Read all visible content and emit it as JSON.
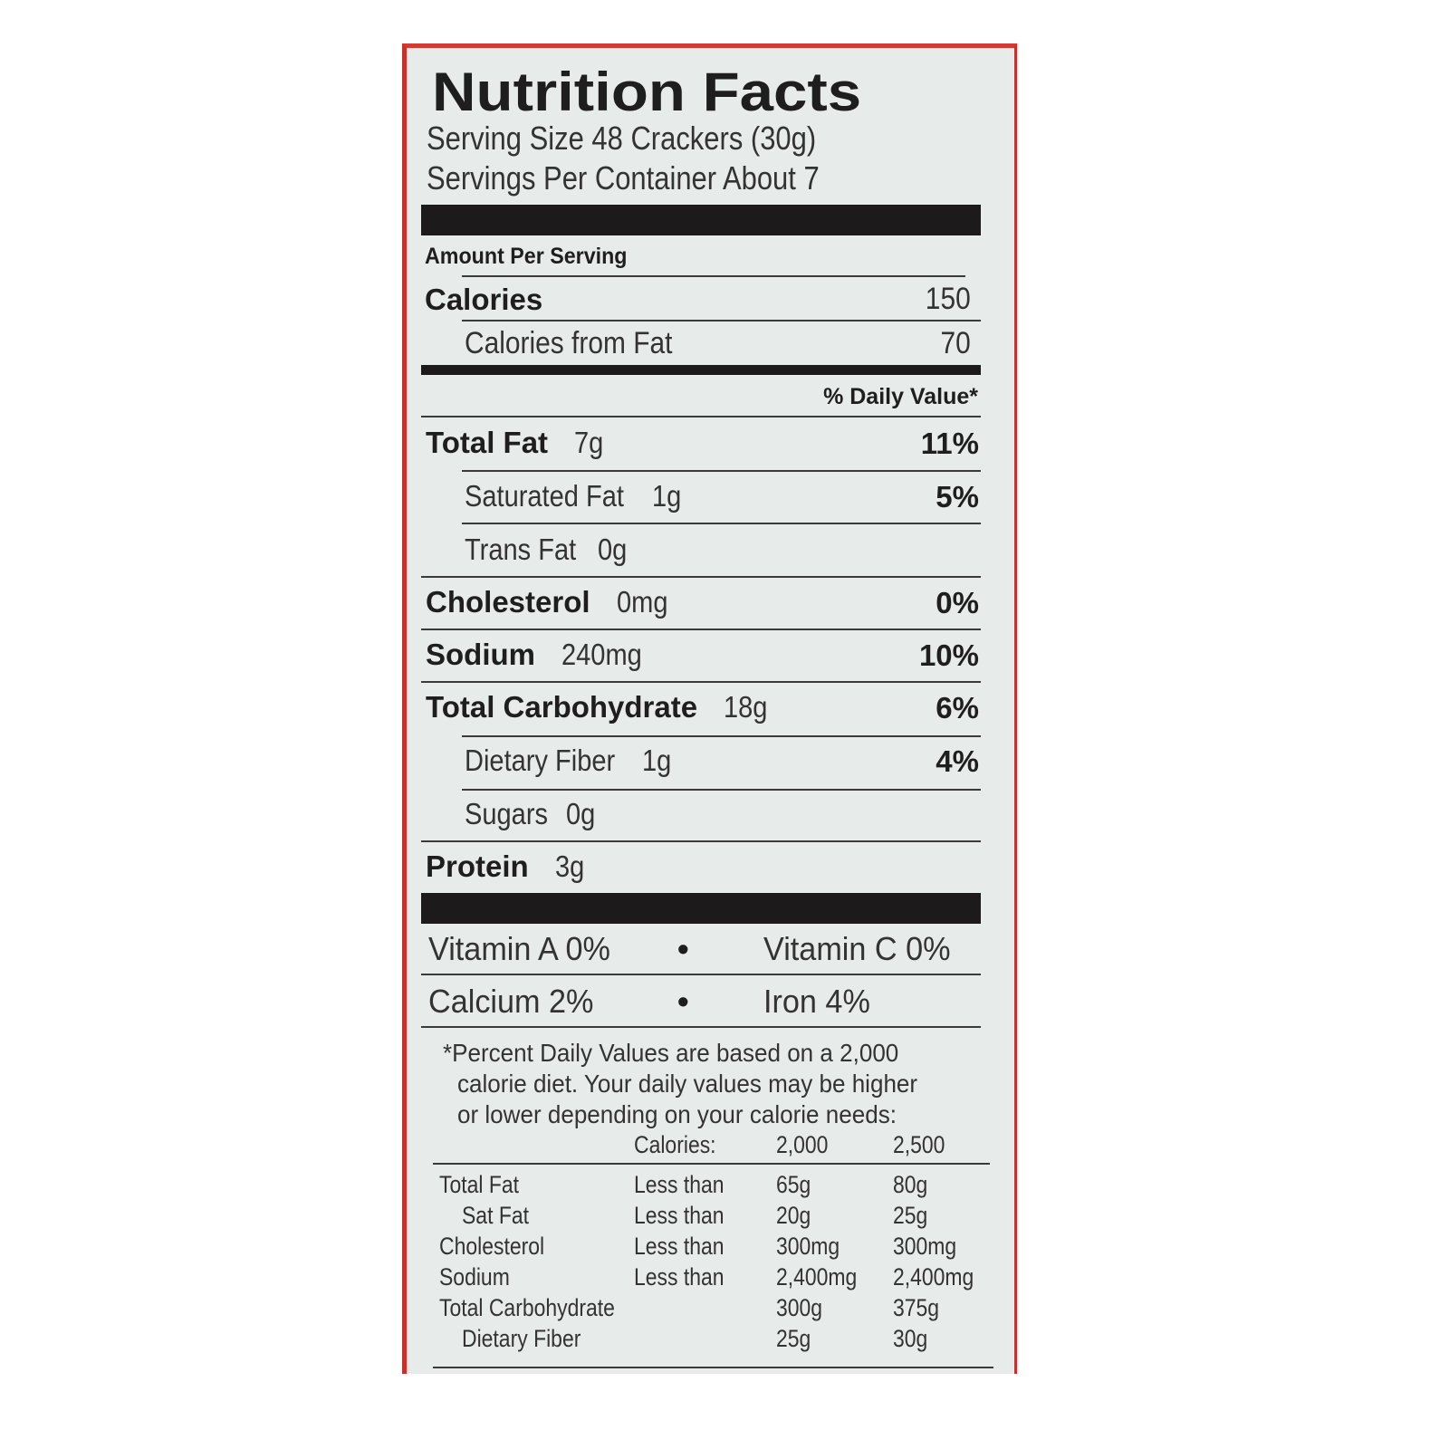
{
  "label": {
    "title": "Nutrition Facts",
    "serving_size": "Serving Size 48 Crackers (30g)",
    "servings_per_container": "Servings Per Container About 7",
    "amount_per_serving": "Amount Per Serving",
    "calories_label": "Calories",
    "calories_value": "150",
    "calories_from_fat_label": "Calories from Fat",
    "calories_from_fat_value": "70",
    "daily_value_header": "% Daily Value*",
    "nutrients": [
      {
        "name": "Total Fat",
        "amount": "7g",
        "dv": "11%",
        "sub": false
      },
      {
        "name": "Saturated Fat",
        "amount": "1g",
        "dv": "5%",
        "sub": true
      },
      {
        "name": "Trans Fat",
        "amount": "0g",
        "dv": "",
        "sub": true
      },
      {
        "name": "Cholesterol",
        "amount": "0mg",
        "dv": "0%",
        "sub": false
      },
      {
        "name": "Sodium",
        "amount": "240mg",
        "dv": "10%",
        "sub": false
      },
      {
        "name": "Total Carbohydrate",
        "amount": "18g",
        "dv": "6%",
        "sub": false
      },
      {
        "name": "Dietary Fiber",
        "amount": "1g",
        "dv": "4%",
        "sub": true
      },
      {
        "name": "Sugars",
        "amount": "0g",
        "dv": "",
        "sub": true
      },
      {
        "name": "Protein",
        "amount": "3g",
        "dv": "",
        "sub": false
      }
    ],
    "vitamins": [
      {
        "left": "Vitamin A 0%",
        "separator": "•",
        "right": "Vitamin C 0%"
      },
      {
        "left": "Calcium 2%",
        "separator": "•",
        "right": "Iron 4%"
      }
    ],
    "footnote": [
      "*Percent Daily Values are based on a 2,000",
      "calorie diet. Your daily values may be higher",
      "or lower depending on your calorie needs:"
    ],
    "dv_table": {
      "header": [
        "",
        "Calories:",
        "2,000",
        "2,500"
      ],
      "rows": [
        [
          "Total Fat",
          "Less than",
          "65g",
          "80g"
        ],
        [
          "Sat Fat",
          "Less than",
          "20g",
          "25g"
        ],
        [
          "Cholesterol",
          "Less than",
          "300mg",
          "300mg"
        ],
        [
          "Sodium",
          "Less than",
          "2,400mg",
          "2,400mg"
        ],
        [
          "Total Carbohydrate",
          "",
          "300g",
          "375g"
        ],
        [
          "Dietary Fiber",
          "",
          "25g",
          "30g"
        ]
      ]
    }
  }
}
